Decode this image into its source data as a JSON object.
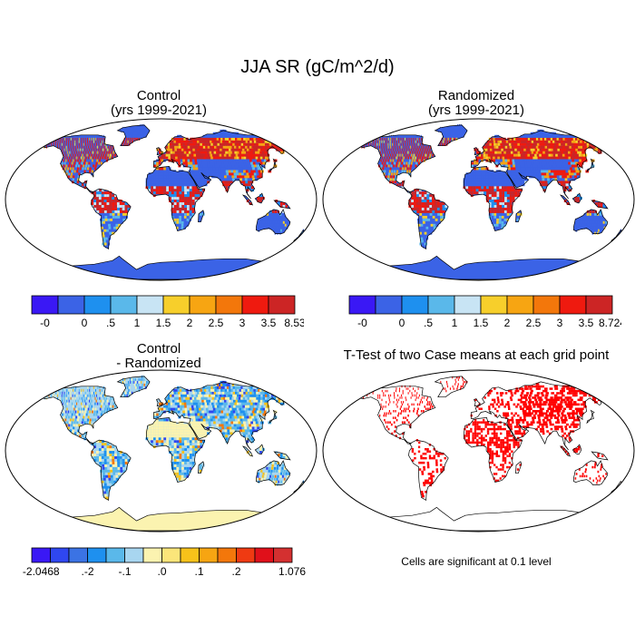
{
  "figure": {
    "title": "JJA SR (gC/m^2/d)",
    "note": "Cells are significant at 0.1 level"
  },
  "panels": [
    {
      "id": "control",
      "title_line1": "Control",
      "title_line2": "(yrs 1999-2021)"
    },
    {
      "id": "randomized",
      "title_line1": "Randomized",
      "title_line2": "(yrs 1999-2021)"
    },
    {
      "id": "difference",
      "title_line1": "Control",
      "title_line2": "- Randomized"
    },
    {
      "id": "ttest",
      "title_line1": "T-Test of two Case means at each grid point",
      "title_line2": ""
    }
  ],
  "colorbars": {
    "control": {
      "colors": [
        "#3a18f5",
        "#3b63e6",
        "#1e90ef",
        "#5ab8ea",
        "#c8e4f4",
        "#f7cf2b",
        "#f7a512",
        "#f3770b",
        "#ef1a0f",
        "#cc2525"
      ],
      "labels": [
        "-0",
        "0",
        ".5",
        "1",
        "1.5",
        "2",
        "2.5",
        "3",
        "3.5",
        "8.53"
      ]
    },
    "randomized": {
      "colors": [
        "#3a18f5",
        "#3b63e6",
        "#1e90ef",
        "#5ab8ea",
        "#c8e4f4",
        "#f7cf2b",
        "#f7a512",
        "#f3770b",
        "#ef1a0f",
        "#cc2525"
      ],
      "labels": [
        "-0",
        "0",
        ".5",
        "1",
        "1.5",
        "2",
        "2.5",
        "3",
        "3.5",
        "8.724"
      ]
    },
    "difference": {
      "colors": [
        "#3a18f5",
        "#2f47f0",
        "#3b73e4",
        "#1e90ef",
        "#5ab8ea",
        "#a8d6f0",
        "#fbf3b0",
        "#fbe57a",
        "#f7c21a",
        "#f7a512",
        "#f3770b",
        "#ef3a12",
        "#e0101a",
        "#d43030"
      ],
      "labels": [
        "-2.0468",
        "",
        ".-2",
        "",
        "-.1",
        "",
        ".0",
        "",
        ".1",
        "",
        ".2",
        "",
        "",
        "1.076"
      ]
    }
  },
  "map_colors": {
    "ocean": "#ffffff",
    "control_land": "#3b63e6",
    "diff_land": "#a8d6f0",
    "antarctica_ctrl": "#3b63e6",
    "antarctica_diff": "#fbf3b0",
    "sig": "#ff0000"
  }
}
